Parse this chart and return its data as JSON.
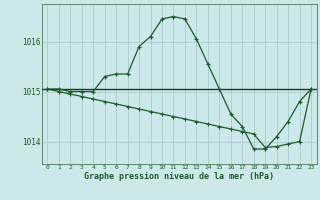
{
  "title": "Graphe pression niveau de la mer (hPa)",
  "bg_color": "#cce8e8",
  "grid_color": "#aacccc",
  "line_color": "#1a5c2a",
  "ref_line_color": "#1a3a1a",
  "xlim": [
    -0.5,
    23.5
  ],
  "ylim": [
    1013.55,
    1016.75
  ],
  "yticks": [
    1014,
    1015,
    1016
  ],
  "xticks": [
    0,
    1,
    2,
    3,
    4,
    5,
    6,
    7,
    8,
    9,
    10,
    11,
    12,
    13,
    14,
    15,
    16,
    17,
    18,
    19,
    20,
    21,
    22,
    23
  ],
  "hours": [
    0,
    1,
    2,
    3,
    4,
    5,
    6,
    7,
    8,
    9,
    10,
    11,
    12,
    13,
    14,
    15,
    16,
    17,
    18,
    19,
    20,
    21,
    22,
    23
  ],
  "pressure_main": [
    1015.05,
    1015.05,
    1015.0,
    1015.0,
    1015.0,
    1015.3,
    1015.35,
    1015.35,
    1015.9,
    1016.1,
    1016.45,
    1016.5,
    1016.45,
    1016.05,
    1015.55,
    1015.05,
    1014.55,
    1014.3,
    1013.85,
    1013.85,
    1014.1,
    1014.4,
    1014.8,
    1015.05
  ],
  "pressure_trend": [
    1015.05,
    1015.0,
    1014.95,
    1014.9,
    1014.85,
    1014.8,
    1014.75,
    1014.7,
    1014.65,
    1014.6,
    1014.55,
    1014.5,
    1014.45,
    1014.4,
    1014.35,
    1014.3,
    1014.25,
    1014.2,
    1014.15,
    1013.88,
    1013.9,
    1013.95,
    1014.0,
    1015.05
  ],
  "ref_value": 1015.05
}
